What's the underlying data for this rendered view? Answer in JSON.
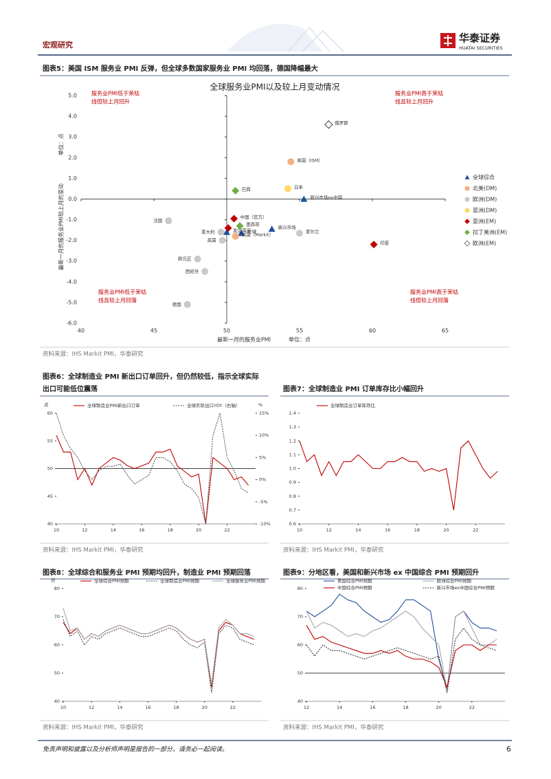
{
  "header": {
    "section": "宏观研究",
    "brand": "华泰证券",
    "brand_en": "HUATAI SECURITIES"
  },
  "figures": [
    {
      "title": [
        "图表5：美国 ISM 服务业 PMI 反弹，但全球多数国家服务业 PMI 均回落，德国降幅最大"
      ],
      "source": "资料来源：IHS Markit PMI，华泰研究"
    },
    {
      "title": [
        "图表6：全球制造业 PMI 新出口订单回升，但仍然较低，指示全球实际",
        "出口可能低位震荡"
      ],
      "source": "资料来源：IHS Markit PMI，华泰研究"
    },
    {
      "title": [
        "图表7：全球制造业 PMI 订单库存比小幅回升"
      ],
      "source": "资料来源：IHS Markit PMI，华泰研究"
    },
    {
      "title": [
        "图表8：全球综合和服务业 PMI 预期均回升，制造业 PMI 预期回落"
      ],
      "source": "资料来源：IHS Markit PMI，华泰研究"
    },
    {
      "title": [
        "图表9：分地区看，美国和新兴市场 ex 中国综合 PMI 预期回升"
      ],
      "source": "资料来源：IHS Markit PMI，华泰研究"
    }
  ],
  "chart_data": [
    {
      "type": "scatter",
      "title": "全球服务业PMI以及较上月变动情况",
      "x_label": "最新一月的服务业PMI",
      "x_unit": "单位：点",
      "y_label": "最新一月的服务业PMI较上月的变动",
      "y_unit": "单位：点",
      "annotations": [
        [
          "服务业PMI低于荣枯",
          "线但较上月回升"
        ],
        [
          "服务业PMI高于荣枯",
          "线且较上月回升"
        ],
        [
          "服务业PMI低于荣枯",
          "线且较上月回落"
        ],
        [
          "服务业PMI高于荣枯",
          "线但较上月回落"
        ]
      ],
      "xlim": [
        40,
        65
      ],
      "xticks": [
        40,
        45,
        50,
        55,
        60,
        65
      ],
      "y_axis_at": 50,
      "ylim": [
        -6,
        5
      ],
      "yticks": [
        {
          "value": -6,
          "label": "-6.0"
        },
        {
          "value": -5,
          "label": "-5.0"
        },
        {
          "value": -4,
          "label": "-4.0"
        },
        {
          "value": -3,
          "label": "-3.0"
        },
        {
          "value": -2,
          "label": "-2.0"
        },
        {
          "value": -1,
          "label": "-1.0"
        },
        {
          "value": 0,
          "label": "0.0"
        },
        {
          "value": 1,
          "label": "1.0"
        },
        {
          "value": 2,
          "label": "2.0"
        },
        {
          "value": 3,
          "label": "3.0"
        },
        {
          "value": 4,
          "label": "4.0"
        },
        {
          "value": 5,
          "label": "5.0"
        }
      ],
      "series": [
        {
          "name": "全球综合",
          "marker": "triangle",
          "color": "#1f4e9c",
          "labels": [
            "新兴市场ex中国",
            "新兴市场",
            "全球",
            "发达国家"
          ],
          "x": [
            55.3,
            53.1,
            51.0,
            50.0
          ],
          "values": [
            0.0,
            -1.45,
            -1.65,
            -1.6
          ]
        },
        {
          "name": "北美(DM)",
          "marker": "circle",
          "color": "#f4b183",
          "labels": [
            "美国（ISM）",
            "美国（Markit）"
          ],
          "x": [
            54.4,
            50.6
          ],
          "values": [
            1.8,
            -1.8
          ]
        },
        {
          "name": "欧洲(DM)",
          "marker": "circle",
          "color": "#c9c9c9",
          "labels": [
            "法国",
            "意大利",
            "英国",
            "欧元区",
            "西班牙",
            "德国",
            "爱尔兰"
          ],
          "x": [
            46.0,
            49.6,
            49.7,
            48.0,
            48.5,
            47.3,
            55.0
          ],
          "values": [
            -1.05,
            -1.6,
            -2.0,
            -2.9,
            -3.5,
            -5.1,
            -1.65
          ]
        },
        {
          "name": "亚洲(DM)",
          "marker": "circle",
          "color": "#ffd966",
          "labels": [
            "日本"
          ],
          "x": [
            54.2
          ],
          "values": [
            0.5
          ]
        },
        {
          "name": "亚洲(EM)",
          "marker": "diamond",
          "color": "#c00000",
          "labels": [
            "中国（官方）",
            null,
            "印度"
          ],
          "x": [
            50.5,
            50.1,
            60.1
          ],
          "values": [
            -0.95,
            -1.4,
            -2.2
          ]
        },
        {
          "name": "拉丁美洲(EM)",
          "marker": "diamond",
          "color": "#70ad47",
          "labels": [
            "巴西",
            "墨西哥"
          ],
          "x": [
            50.6,
            50.9
          ],
          "values": [
            0.4,
            -1.3
          ]
        },
        {
          "name": "欧洲(EM)",
          "marker": "diamond",
          "color": "#ffffff",
          "labels": [
            "俄罗斯"
          ],
          "x": [
            57.0
          ],
          "values": [
            3.6
          ]
        }
      ]
    },
    {
      "type": "line",
      "y_unit": "点",
      "y2_unit": "%",
      "xlim": [
        2010,
        2024
      ],
      "xticks": [
        {
          "value": 2010,
          "label": "10"
        },
        {
          "value": 2012,
          "label": "12"
        },
        {
          "value": 2014,
          "label": "14"
        },
        {
          "value": 2016,
          "label": "16"
        },
        {
          "value": 2018,
          "label": "18"
        },
        {
          "value": 2020,
          "label": "20"
        },
        {
          "value": 2022,
          "label": "22"
        }
      ],
      "ylim": [
        40,
        60
      ],
      "yticks": [
        40,
        45,
        50,
        55,
        60
      ],
      "baseline": 50,
      "y2lim": [
        -10,
        15
      ],
      "y2ticks": [
        {
          "value": -10,
          "label": "-10%"
        },
        {
          "value": -5,
          "label": "-5%"
        },
        {
          "value": 0,
          "label": "0%"
        },
        {
          "value": 5,
          "label": "5%"
        },
        {
          "value": 10,
          "label": "10%"
        },
        {
          "value": 15,
          "label": "15%"
        }
      ],
      "x": [
        2010,
        2010.5,
        2011,
        2011.5,
        2012,
        2012.5,
        2013,
        2013.5,
        2014,
        2014.5,
        2015,
        2015.5,
        2016,
        2016.5,
        2017,
        2017.5,
        2018,
        2018.5,
        2019,
        2019.5,
        2020,
        2020.5,
        2021,
        2021.5,
        2022,
        2022.5,
        2023,
        2023.5
      ],
      "series": [
        {
          "name": "全球制造业PMI新出口订单",
          "color": "#c00000",
          "values": [
            56,
            53,
            53,
            48,
            50,
            47,
            50,
            51,
            52,
            51.5,
            50.5,
            50,
            50.5,
            51,
            53,
            53,
            53.5,
            50.5,
            49.5,
            48.5,
            49,
            40,
            52,
            51,
            50,
            48,
            48.5,
            47
          ]
        },
        {
          "name": "全球实际出口YOY（右轴）",
          "color": "#555555",
          "dash": true,
          "axis": "y2",
          "values": [
            15,
            10,
            7,
            5,
            2,
            0,
            2,
            3,
            3,
            3.5,
            1,
            -1,
            0,
            1,
            5,
            5,
            4,
            2,
            -1,
            -2,
            -4,
            -10,
            10,
            15,
            5,
            2,
            -2,
            -3
          ]
        }
      ]
    },
    {
      "type": "line",
      "xlim": [
        2010,
        2024
      ],
      "xticks": [
        {
          "value": 2010,
          "label": "10"
        },
        {
          "value": 2012,
          "label": "12"
        },
        {
          "value": 2014,
          "label": "14"
        },
        {
          "value": 2016,
          "label": "16"
        },
        {
          "value": 2018,
          "label": "18"
        },
        {
          "value": 2020,
          "label": "20"
        },
        {
          "value": 2022,
          "label": "22"
        }
      ],
      "ylim": [
        0.6,
        1.4
      ],
      "yticks": [
        0.6,
        0.7,
        0.8,
        0.9,
        {
          "value": 1,
          "label": "1.0"
        },
        1.1,
        1.2,
        1.3,
        1.4
      ],
      "x": [
        2010,
        2010.5,
        2011,
        2011.5,
        2012,
        2012.5,
        2013,
        2013.5,
        2014,
        2014.5,
        2015,
        2015.5,
        2016,
        2016.5,
        2017,
        2017.5,
        2018,
        2018.5,
        2019,
        2019.5,
        2020,
        2020.5,
        2021,
        2021.5,
        2022,
        2022.5,
        2023,
        2023.5
      ],
      "series": [
        {
          "name": "全球制造业订单库存比",
          "color": "#c00000",
          "values": [
            1.2,
            1.05,
            1.1,
            0.95,
            1.05,
            0.95,
            1.05,
            1.05,
            1.1,
            1.05,
            1.0,
            1.0,
            1.05,
            1.05,
            1.08,
            1.05,
            1.05,
            0.98,
            1.0,
            0.98,
            1.0,
            0.7,
            1.15,
            1.2,
            1.1,
            1.0,
            0.93,
            0.98
          ]
        }
      ]
    },
    {
      "type": "line",
      "y_unit": "点",
      "xlim": [
        2010,
        2024
      ],
      "xticks": [
        {
          "value": 2010,
          "label": "10"
        },
        {
          "value": 2012,
          "label": "12"
        },
        {
          "value": 2014,
          "label": "14"
        },
        {
          "value": 2016,
          "label": "16"
        },
        {
          "value": 2018,
          "label": "18"
        },
        {
          "value": 2020,
          "label": "20"
        },
        {
          "value": 2022,
          "label": "22"
        }
      ],
      "ylim": [
        40,
        80
      ],
      "yticks": [
        40,
        50,
        60,
        70,
        80
      ],
      "x": [
        2010,
        2010.5,
        2011,
        2011.5,
        2012,
        2012.5,
        2013,
        2013.5,
        2014,
        2014.5,
        2015,
        2015.5,
        2016,
        2016.5,
        2017,
        2017.5,
        2018,
        2018.5,
        2019,
        2019.5,
        2020,
        2020.5,
        2021,
        2021.5,
        2022,
        2022.5,
        2023,
        2023.5
      ],
      "series": [
        {
          "name": "全球综合PMI预期",
          "color": "#c00000",
          "values": [
            68,
            64,
            66,
            62,
            64,
            63,
            65,
            66,
            67,
            66,
            65,
            64,
            64,
            65,
            66,
            67,
            66,
            64,
            62,
            61,
            62,
            45,
            65,
            68,
            67,
            64,
            63,
            62
          ]
        },
        {
          "name": "全球制造业PMI预期",
          "color": "#444444",
          "dash": true,
          "values": [
            69,
            63,
            65,
            60,
            63,
            62,
            64,
            65,
            66,
            65,
            64,
            63,
            63,
            64,
            65,
            66,
            65,
            62,
            60,
            59,
            61,
            43,
            64,
            67,
            66,
            62,
            61,
            60
          ]
        },
        {
          "name": "全球服务业PMI预期",
          "color": "#a6a6a6",
          "values": [
            73,
            65,
            66,
            62,
            64,
            63,
            65,
            66,
            67,
            66,
            65,
            64,
            64,
            65,
            66,
            67,
            66,
            64,
            62,
            61,
            62,
            46,
            66,
            69,
            67,
            64,
            64,
            63
          ]
        }
      ]
    },
    {
      "type": "line",
      "xlim": [
        2012,
        2024
      ],
      "xticks": [
        {
          "value": 2012,
          "label": "12"
        },
        {
          "value": 2014,
          "label": "14"
        },
        {
          "value": 2016,
          "label": "16"
        },
        {
          "value": 2018,
          "label": "18"
        },
        {
          "value": 2020,
          "label": "20"
        },
        {
          "value": 2022,
          "label": "22"
        }
      ],
      "ylim": [
        40,
        80
      ],
      "yticks": [
        40,
        50,
        60,
        70,
        80
      ],
      "baseline": 50,
      "x": [
        2012,
        2012.5,
        2013,
        2013.5,
        2014,
        2014.5,
        2015,
        2015.5,
        2016,
        2016.5,
        2017,
        2017.5,
        2018,
        2018.5,
        2019,
        2019.5,
        2020,
        2020.5,
        2021,
        2021.5,
        2022,
        2022.5,
        2023,
        2023.5
      ],
      "series": [
        {
          "name": "美国综合PMI预期",
          "color": "#1f4e9c",
          "values": [
            72,
            70,
            72,
            74,
            78,
            76,
            75,
            72,
            70,
            68,
            69,
            72,
            76,
            76,
            74,
            72,
            55,
            44,
            70,
            72,
            68,
            66,
            66,
            65
          ]
        },
        {
          "name": "欧洲综合PMI预期",
          "color": "#a6a6a6",
          "values": [
            72,
            66,
            68,
            67,
            65,
            63,
            64,
            63,
            65,
            66,
            68,
            70,
            72,
            70,
            66,
            63,
            60,
            44,
            70,
            72,
            66,
            60,
            60,
            62
          ]
        },
        {
          "name": "中国综合PMI预期",
          "color": "#c00000",
          "values": [
            67,
            62,
            63,
            61,
            60,
            59,
            58,
            57,
            57,
            58,
            57,
            58,
            56,
            55,
            55,
            54,
            52,
            45,
            58,
            60,
            60,
            58,
            60,
            60
          ]
        },
        {
          "name": "新兴市场ex中国综合PMI预期",
          "color": "#333333",
          "dash": true,
          "values": [
            60,
            56,
            60,
            58,
            58,
            57,
            56,
            55,
            56,
            57,
            58,
            59,
            58,
            57,
            56,
            55,
            56,
            43,
            62,
            66,
            62,
            60,
            59,
            58
          ]
        }
      ]
    }
  ],
  "footer": {
    "disclaimer": "免责声明和披露以及分析师声明是报告的一部分，请务必一起阅读。",
    "page": "6"
  }
}
